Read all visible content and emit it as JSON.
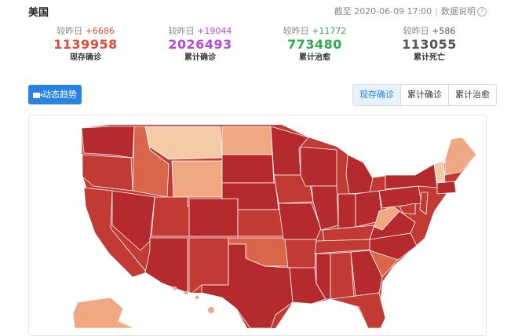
{
  "header": {
    "country": "美国",
    "as_of": "截至 2020-06-09 17:00",
    "data_note": "数据说明"
  },
  "stats": [
    {
      "delta_label": "较昨日",
      "delta": "+6686",
      "value": "1139958",
      "label": "现存确诊",
      "color": "#e04a3a"
    },
    {
      "delta_label": "较昨日",
      "delta": "+19044",
      "value": "2026493",
      "label": "累计确诊",
      "color": "#b549d8"
    },
    {
      "delta_label": "较昨日",
      "delta": "+11772",
      "value": "773480",
      "label": "累计治愈",
      "color": "#2eac4e"
    },
    {
      "delta_label": "较昨日",
      "delta": "+586",
      "value": "113055",
      "label": "累计死亡",
      "color": "#555555"
    }
  ],
  "trend_button": {
    "label": "动态趋势",
    "icon": "video-camera-icon"
  },
  "tabs": [
    {
      "label": "现存确诊",
      "active": true
    },
    {
      "label": "累计确诊",
      "active": false
    },
    {
      "label": "累计治愈",
      "active": false
    }
  ],
  "map": {
    "palette": {
      "dark": "#b52b2d",
      "mid": "#c23a34",
      "med": "#d9654a",
      "light": "#efa882",
      "pale": "#f5cba7",
      "border": "#ffffff"
    }
  }
}
